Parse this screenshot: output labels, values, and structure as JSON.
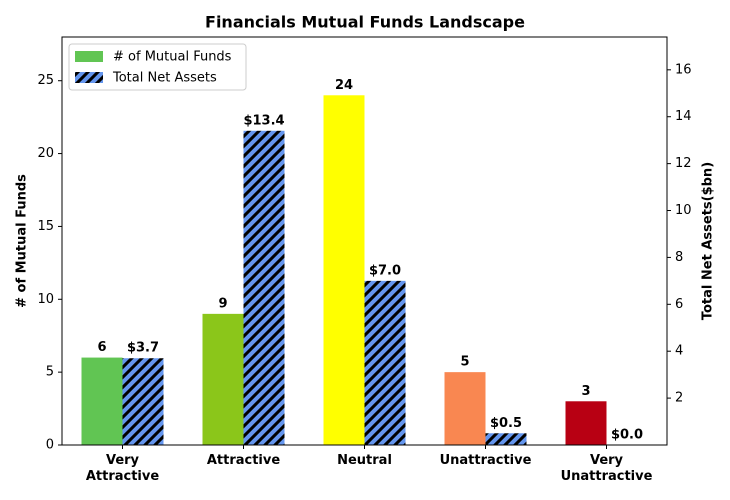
{
  "chart_data": {
    "type": "bar",
    "title": "Financials Mutual Funds Landscape",
    "categories": [
      "Very Attractive",
      "Attractive",
      "Neutral",
      "Unattractive",
      "Very Unattractive"
    ],
    "series": [
      {
        "name": "# of Mutual Funds",
        "colors": [
          "#61c553",
          "#8bc61a",
          "#ffff00",
          "#f98751",
          "#b80013"
        ],
        "values": [
          6,
          9,
          24,
          5,
          3
        ]
      },
      {
        "name": "Total Net Assets",
        "color": "#6495ed",
        "hatch": "/",
        "axis": "y2",
        "values": [
          3.7,
          13.4,
          7.0,
          0.5,
          0.0
        ],
        "value_labels": [
          "$3.7",
          "$13.4",
          "$7.0",
          "$0.5",
          "$0.0"
        ]
      }
    ],
    "ylabel": "# of Mutual Funds",
    "y2label": "Total Net Assets($bn)",
    "ylim": [
      0,
      28
    ],
    "yticks": [
      0,
      5,
      10,
      15,
      20,
      25
    ],
    "y2lim": [
      0,
      17.4
    ],
    "y2ticks": [
      2,
      4,
      6,
      8,
      10,
      12,
      14,
      16
    ],
    "legend": "upper left"
  }
}
